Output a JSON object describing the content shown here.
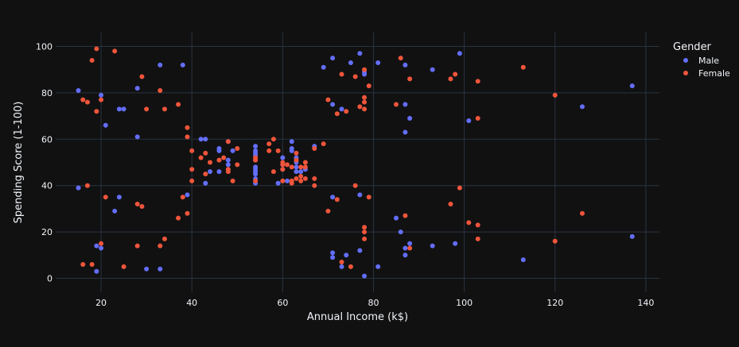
{
  "chart_data": {
    "type": "scatter",
    "title": "",
    "xlabel": "Annual Income (k$)",
    "ylabel": "Spending Score (1-100)",
    "xlim": [
      10,
      143
    ],
    "ylim": [
      -6,
      106
    ],
    "x_ticks": [
      20,
      40,
      60,
      80,
      100,
      120,
      140
    ],
    "y_ticks": [
      0,
      20,
      40,
      60,
      80,
      100
    ],
    "grid": true,
    "legend": {
      "title": "Gender",
      "placement": "top-right"
    },
    "series": [
      {
        "name": "Male",
        "color": "#636efa",
        "points": [
          [
            15,
            39
          ],
          [
            15,
            81
          ],
          [
            19,
            3
          ],
          [
            19,
            14
          ],
          [
            20,
            13
          ],
          [
            20,
            79
          ],
          [
            21,
            66
          ],
          [
            23,
            29
          ],
          [
            24,
            35
          ],
          [
            24,
            73
          ],
          [
            25,
            73
          ],
          [
            28,
            82
          ],
          [
            28,
            61
          ],
          [
            30,
            4
          ],
          [
            33,
            4
          ],
          [
            33,
            92
          ],
          [
            38,
            92
          ],
          [
            39,
            36
          ],
          [
            42,
            60
          ],
          [
            43,
            60
          ],
          [
            43,
            41
          ],
          [
            44,
            46
          ],
          [
            46,
            46
          ],
          [
            46,
            55
          ],
          [
            46,
            56
          ],
          [
            48,
            59
          ],
          [
            48,
            51
          ],
          [
            48,
            49
          ],
          [
            49,
            55
          ],
          [
            54,
            57
          ],
          [
            54,
            55
          ],
          [
            54,
            54
          ],
          [
            54,
            53
          ],
          [
            54,
            51
          ],
          [
            54,
            48
          ],
          [
            54,
            47
          ],
          [
            54,
            46
          ],
          [
            54,
            45
          ],
          [
            54,
            43
          ],
          [
            54,
            41
          ],
          [
            59,
            41
          ],
          [
            60,
            52
          ],
          [
            60,
            49
          ],
          [
            60,
            47
          ],
          [
            61,
            42
          ],
          [
            62,
            59
          ],
          [
            62,
            55
          ],
          [
            62,
            56
          ],
          [
            63,
            52
          ],
          [
            63,
            48
          ],
          [
            63,
            46
          ],
          [
            63,
            50
          ],
          [
            64,
            46
          ],
          [
            65,
            47
          ],
          [
            67,
            57
          ],
          [
            69,
            91
          ],
          [
            71,
            95
          ],
          [
            71,
            75
          ],
          [
            71,
            35
          ],
          [
            71,
            11
          ],
          [
            71,
            9
          ],
          [
            73,
            73
          ],
          [
            73,
            5
          ],
          [
            74,
            10
          ],
          [
            75,
            93
          ],
          [
            77,
            97
          ],
          [
            77,
            36
          ],
          [
            77,
            12
          ],
          [
            78,
            89
          ],
          [
            78,
            88
          ],
          [
            78,
            1
          ],
          [
            81,
            93
          ],
          [
            81,
            5
          ],
          [
            85,
            26
          ],
          [
            86,
            20
          ],
          [
            87,
            92
          ],
          [
            87,
            75
          ],
          [
            87,
            63
          ],
          [
            87,
            13
          ],
          [
            87,
            10
          ],
          [
            88,
            69
          ],
          [
            88,
            15
          ],
          [
            93,
            90
          ],
          [
            93,
            14
          ],
          [
            98,
            15
          ],
          [
            99,
            97
          ],
          [
            101,
            68
          ],
          [
            113,
            8
          ],
          [
            126,
            74
          ],
          [
            137,
            83
          ],
          [
            137,
            18
          ]
        ]
      },
      {
        "name": "Female",
        "color": "#ef553b",
        "points": [
          [
            16,
            6
          ],
          [
            16,
            77
          ],
          [
            17,
            40
          ],
          [
            17,
            76
          ],
          [
            18,
            6
          ],
          [
            18,
            94
          ],
          [
            19,
            72
          ],
          [
            19,
            99
          ],
          [
            20,
            15
          ],
          [
            20,
            77
          ],
          [
            21,
            35
          ],
          [
            23,
            98
          ],
          [
            25,
            5
          ],
          [
            28,
            14
          ],
          [
            28,
            32
          ],
          [
            29,
            31
          ],
          [
            29,
            87
          ],
          [
            30,
            73
          ],
          [
            33,
            14
          ],
          [
            33,
            81
          ],
          [
            34,
            17
          ],
          [
            34,
            73
          ],
          [
            37,
            26
          ],
          [
            37,
            75
          ],
          [
            38,
            35
          ],
          [
            39,
            28
          ],
          [
            39,
            61
          ],
          [
            39,
            65
          ],
          [
            40,
            55
          ],
          [
            40,
            47
          ],
          [
            40,
            42
          ],
          [
            42,
            52
          ],
          [
            43,
            54
          ],
          [
            43,
            45
          ],
          [
            44,
            50
          ],
          [
            46,
            51
          ],
          [
            47,
            52
          ],
          [
            48,
            59
          ],
          [
            48,
            47
          ],
          [
            48,
            46
          ],
          [
            49,
            42
          ],
          [
            50,
            49
          ],
          [
            50,
            56
          ],
          [
            54,
            42
          ],
          [
            54,
            52
          ],
          [
            54,
            51
          ],
          [
            57,
            58
          ],
          [
            57,
            55
          ],
          [
            58,
            60
          ],
          [
            58,
            46
          ],
          [
            59,
            55
          ],
          [
            60,
            42
          ],
          [
            60,
            49
          ],
          [
            60,
            50
          ],
          [
            60,
            47
          ],
          [
            61,
            49
          ],
          [
            62,
            48
          ],
          [
            62,
            41
          ],
          [
            62,
            42
          ],
          [
            63,
            51
          ],
          [
            63,
            54
          ],
          [
            63,
            43
          ],
          [
            64,
            42
          ],
          [
            64,
            44
          ],
          [
            64,
            48
          ],
          [
            65,
            50
          ],
          [
            65,
            48
          ],
          [
            65,
            43
          ],
          [
            67,
            40
          ],
          [
            67,
            43
          ],
          [
            67,
            56
          ],
          [
            69,
            58
          ],
          [
            70,
            77
          ],
          [
            70,
            29
          ],
          [
            72,
            71
          ],
          [
            72,
            34
          ],
          [
            73,
            88
          ],
          [
            73,
            7
          ],
          [
            74,
            72
          ],
          [
            75,
            5
          ],
          [
            76,
            40
          ],
          [
            76,
            87
          ],
          [
            77,
            74
          ],
          [
            78,
            76
          ],
          [
            78,
            78
          ],
          [
            78,
            73
          ],
          [
            78,
            90
          ],
          [
            78,
            22
          ],
          [
            78,
            20
          ],
          [
            78,
            17
          ],
          [
            79,
            35
          ],
          [
            79,
            83
          ],
          [
            85,
            75
          ],
          [
            86,
            95
          ],
          [
            87,
            27
          ],
          [
            88,
            86
          ],
          [
            88,
            13
          ],
          [
            97,
            32
          ],
          [
            97,
            86
          ],
          [
            98,
            88
          ],
          [
            99,
            39
          ],
          [
            101,
            24
          ],
          [
            103,
            85
          ],
          [
            103,
            69
          ],
          [
            103,
            23
          ],
          [
            103,
            17
          ],
          [
            113,
            91
          ],
          [
            120,
            79
          ],
          [
            120,
            16
          ],
          [
            126,
            28
          ]
        ]
      }
    ]
  }
}
